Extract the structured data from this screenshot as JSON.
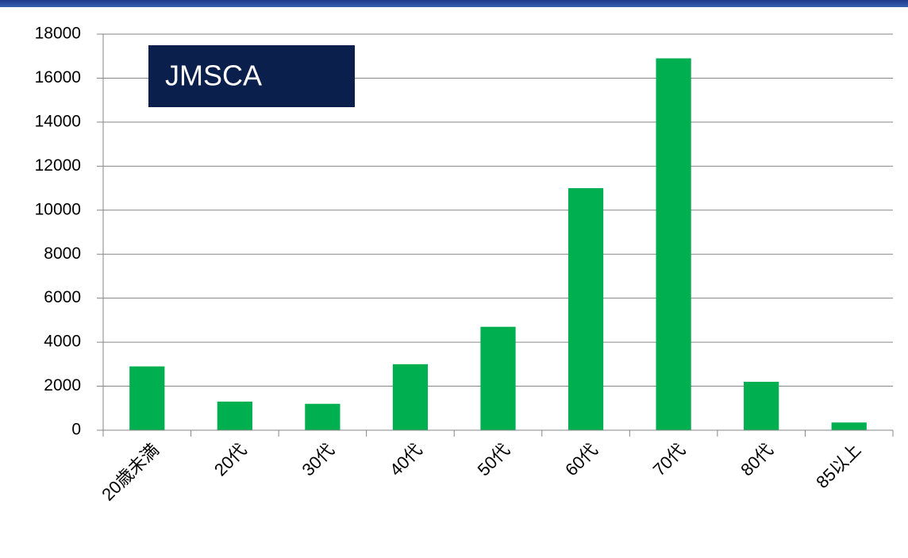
{
  "chart_data": {
    "type": "bar",
    "annotation": "JMSCA",
    "categories": [
      "20歳未満",
      "20代",
      "30代",
      "40代",
      "50代",
      "60代",
      "70代",
      "80代",
      "85以上"
    ],
    "values": [
      2900,
      1300,
      1200,
      3000,
      4700,
      11000,
      16900,
      2200,
      350
    ],
    "color": "#00b050",
    "ylim": [
      0,
      18000
    ],
    "yticks": [
      0,
      2000,
      4000,
      6000,
      8000,
      10000,
      12000,
      14000,
      16000,
      18000
    ],
    "grid": true
  }
}
